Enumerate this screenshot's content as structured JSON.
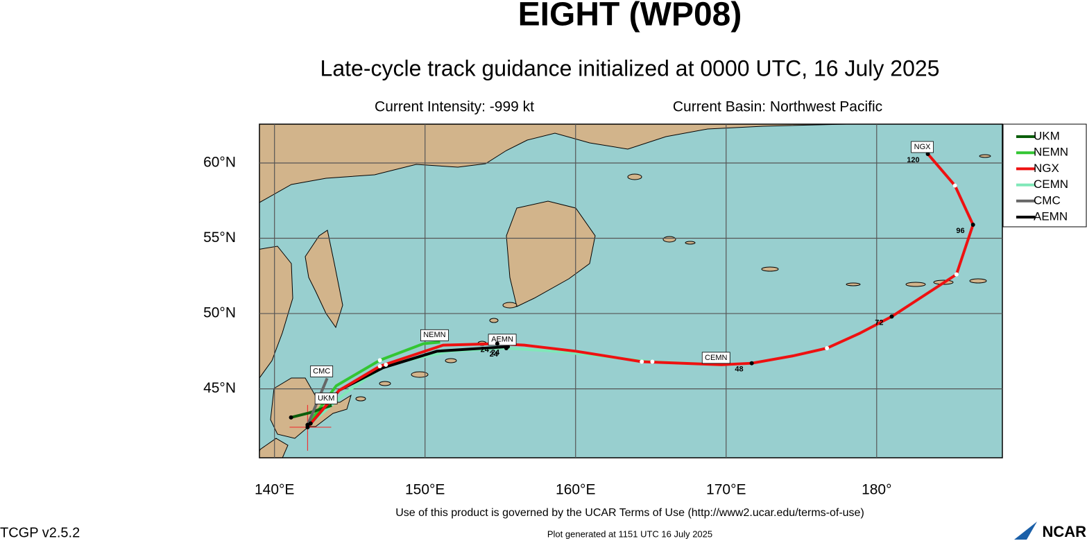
{
  "chart_data": {
    "type": "track",
    "title": "EIGHT (WP08)",
    "subtitle": "Late-cycle track guidance initialized at 0000 UTC, 16 July 2025",
    "intensity": "Current Intensity: -999 kt",
    "basin": "Current Basin: Northwest Pacific",
    "xlim": [
      139,
      188.35
    ],
    "ylim": [
      40.42,
      62.58
    ],
    "xticks": [
      {
        "value": 140,
        "label": "140°E"
      },
      {
        "value": 150,
        "label": "150°E"
      },
      {
        "value": 160,
        "label": "160°E"
      },
      {
        "value": 170,
        "label": "170°E"
      },
      {
        "value": 180,
        "label": "180°"
      }
    ],
    "yticks": [
      {
        "value": 45,
        "label": "45°N"
      },
      {
        "value": 50,
        "label": "50°N"
      },
      {
        "value": 55,
        "label": "55°N"
      },
      {
        "value": 60,
        "label": "60°N"
      }
    ],
    "grid": true,
    "legend": "right",
    "initial_position": {
      "lon": 142.2,
      "lat": 42.45
    },
    "series": [
      {
        "name": "UKM",
        "color": "#0b5e0b",
        "x": [
          141.1,
          142.3,
          143.8
        ],
        "y": [
          43.1,
          43.4,
          43.9
        ],
        "markers": [
          "black",
          null,
          null
        ],
        "hour_labels": [
          null,
          null,
          null
        ]
      },
      {
        "name": "NEMN",
        "color": "#33c633",
        "x": [
          142.2,
          144.1,
          147.0,
          149.9,
          151.0
        ],
        "y": [
          42.6,
          45.2,
          46.9,
          48.0,
          48.1
        ],
        "markers": [
          "black",
          null,
          "white",
          null,
          null
        ],
        "hour_labels": [
          null,
          null,
          null,
          null,
          null
        ]
      },
      {
        "name": "NGX",
        "color": "#ee1111",
        "x": [
          142.2,
          144.3,
          147.0,
          151.2,
          154.8,
          156.6,
          160.0,
          164.4,
          169.7,
          171.7,
          174.5,
          176.7,
          178.9,
          181.0,
          185.3,
          186.4,
          185.2,
          183.4
        ],
        "y": [
          42.45,
          44.9,
          46.5,
          47.9,
          48.0,
          47.9,
          47.5,
          46.8,
          46.6,
          46.7,
          47.2,
          47.7,
          48.7,
          49.8,
          52.6,
          55.9,
          58.5,
          60.6
        ],
        "markers": [
          "black",
          null,
          "white",
          null,
          "black",
          null,
          null,
          "white",
          null,
          "black",
          null,
          "white",
          null,
          "black",
          "white",
          "black",
          "white",
          "black"
        ],
        "hour_labels": [
          null,
          null,
          null,
          null,
          "24",
          null,
          null,
          null,
          null,
          "48",
          null,
          null,
          null,
          "72",
          null,
          "96",
          null,
          "120"
        ]
      },
      {
        "name": "CEMN",
        "color": "#7fe8b8",
        "x": [
          142.4,
          144.8,
          147.4,
          151.7,
          155.4,
          158.6,
          165.1,
          169.7
        ],
        "y": [
          42.7,
          44.8,
          46.6,
          47.5,
          47.7,
          47.5,
          46.8,
          46.6
        ],
        "markers": [
          "black",
          null,
          "white",
          null,
          "black",
          null,
          "white",
          null
        ],
        "hour_labels": [
          null,
          null,
          null,
          null,
          "24",
          null,
          null,
          null
        ]
      },
      {
        "name": "CMC",
        "color": "#666666",
        "x": [
          142.2,
          143.5
        ],
        "y": [
          42.6,
          45.7
        ],
        "markers": [
          "black",
          null
        ],
        "hour_labels": [
          null,
          null
        ]
      },
      {
        "name": "AEMN",
        "color": "#000000",
        "x": [
          142.2,
          144.3,
          147.2,
          150.8,
          155.5
        ],
        "y": [
          42.45,
          44.9,
          46.4,
          47.5,
          47.8
        ],
        "markers": [
          "black",
          null,
          null,
          null,
          "black"
        ],
        "hour_labels": [
          null,
          null,
          null,
          null,
          "24"
        ]
      }
    ]
  },
  "footer": {
    "terms": "Use of this product is governed by the UCAR Terms of Use (http://www2.ucar.edu/terms-of-use)",
    "version": "TCGP v2.5.2",
    "generated": "Plot generated at 1151 UTC   16 July 2025",
    "logo": "NCAR"
  }
}
